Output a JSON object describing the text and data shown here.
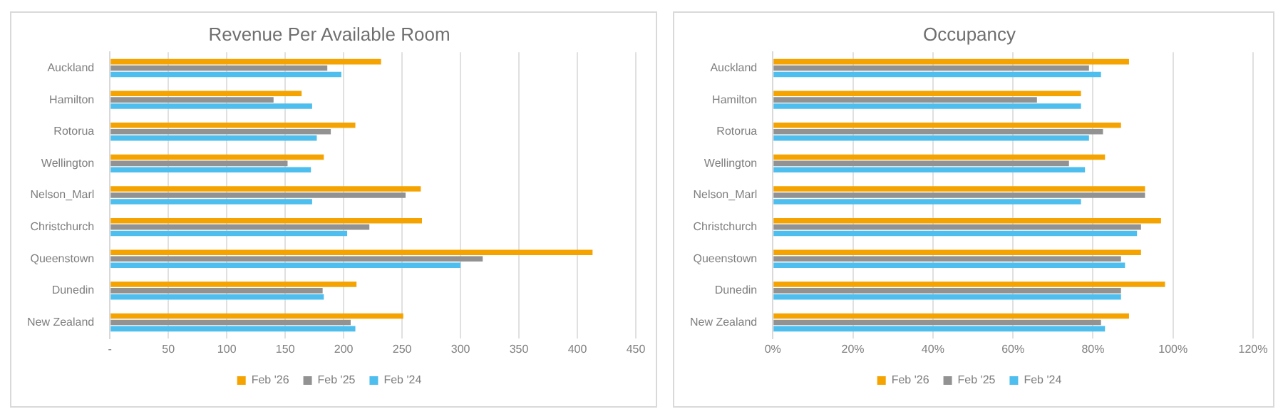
{
  "chart_data": [
    {
      "type": "bar",
      "orientation": "horizontal",
      "title": "Revenue Per Available Room",
      "categories": [
        "Auckland",
        "Hamilton",
        "Rotorua",
        "Wellington",
        "Nelson_Marl",
        "Christchurch",
        "Queenstown",
        "Dunedin",
        "New Zealand"
      ],
      "series": [
        {
          "name": "Feb '26",
          "color": "#f5a300",
          "values": [
            232,
            164,
            210,
            183,
            266,
            267,
            413,
            211,
            251
          ]
        },
        {
          "name": "Feb '25",
          "color": "#929292",
          "values": [
            186,
            140,
            189,
            152,
            253,
            222,
            319,
            182,
            206
          ]
        },
        {
          "name": "Feb '24",
          "color": "#4dbeee",
          "values": [
            198,
            173,
            177,
            172,
            173,
            203,
            300,
            183,
            210
          ]
        }
      ],
      "xlim": [
        0,
        450
      ],
      "xticks": [
        {
          "value": 0,
          "label": "-"
        },
        50,
        100,
        150,
        200,
        250,
        300,
        350,
        400,
        450
      ],
      "grid": "x",
      "legend": "bottom"
    },
    {
      "type": "bar",
      "orientation": "horizontal",
      "title": "Occupancy",
      "categories": [
        "Auckland",
        "Hamilton",
        "Rotorua",
        "Wellington",
        "Nelson_Marl",
        "Christchurch",
        "Queenstown",
        "Dunedin",
        "New Zealand"
      ],
      "series": [
        {
          "name": "Feb '26",
          "color": "#f5a300",
          "values": [
            89,
            77,
            87,
            83,
            93,
            97,
            92,
            98,
            89
          ]
        },
        {
          "name": "Feb '25",
          "color": "#929292",
          "values": [
            79,
            66,
            82.5,
            74,
            93,
            92,
            87,
            87,
            82
          ]
        },
        {
          "name": "Feb '24",
          "color": "#4dbeee",
          "values": [
            82,
            77,
            79,
            78,
            77,
            91,
            88,
            87,
            83
          ]
        }
      ],
      "xlim": [
        0,
        120
      ],
      "xticks": [
        {
          "value": 0,
          "label": "0%"
        },
        {
          "value": 20,
          "label": "20%"
        },
        {
          "value": 40,
          "label": "40%"
        },
        {
          "value": 60,
          "label": "60%"
        },
        {
          "value": 80,
          "label": "80%"
        },
        {
          "value": 100,
          "label": "100%"
        },
        {
          "value": 120,
          "label": "120%"
        }
      ],
      "grid": "x",
      "legend": "bottom"
    }
  ]
}
